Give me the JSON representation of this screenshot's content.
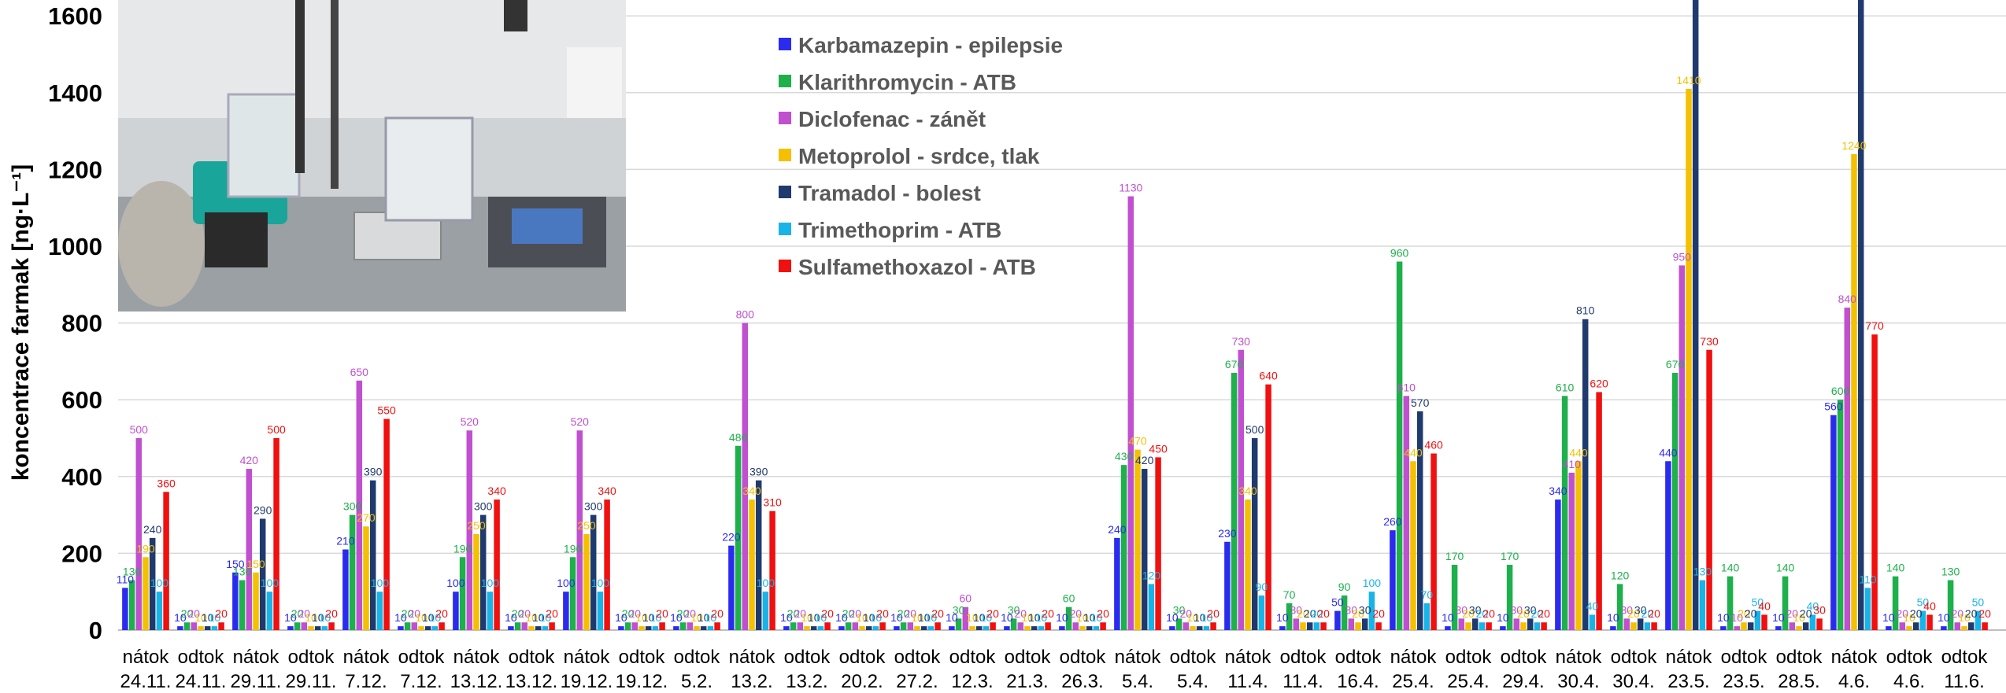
{
  "chart_data": {
    "type": "bar",
    "ylabel": "koncentrace farmak [ng·L⁻¹]",
    "ylim": [
      0,
      1640
    ],
    "yticks": [
      0,
      200,
      400,
      600,
      800,
      1000,
      1200,
      1400,
      1600
    ],
    "grid": true,
    "categories": [
      [
        "nátok",
        "24.11."
      ],
      [
        "odtok",
        "24.11."
      ],
      [
        "nátok",
        "29.11."
      ],
      [
        "odtok",
        "29.11."
      ],
      [
        "nátok",
        "7.12."
      ],
      [
        "odtok",
        "7.12."
      ],
      [
        "nátok",
        "13.12."
      ],
      [
        "odtok",
        "13.12."
      ],
      [
        "nátok",
        "19.12."
      ],
      [
        "odtok",
        "19.12."
      ],
      [
        "odtok",
        "5.2."
      ],
      [
        "nátok",
        "13.2."
      ],
      [
        "odtok",
        "13.2."
      ],
      [
        "odtok",
        "20.2."
      ],
      [
        "odtok",
        "27.2."
      ],
      [
        "odtok",
        "12.3."
      ],
      [
        "odtok",
        "21.3."
      ],
      [
        "odtok",
        "26.3."
      ],
      [
        "nátok",
        "5.4."
      ],
      [
        "odtok",
        "5.4."
      ],
      [
        "nátok",
        "11.4."
      ],
      [
        "odtok",
        "11.4."
      ],
      [
        "odtok",
        "16.4."
      ],
      [
        "nátok",
        "25.4."
      ],
      [
        "odtok",
        "25.4."
      ],
      [
        "odtok",
        "29.4."
      ],
      [
        "nátok",
        "30.4."
      ],
      [
        "odtok",
        "30.4."
      ],
      [
        "nátok",
        "23.5."
      ],
      [
        "odtok",
        "23.5."
      ],
      [
        "odtok",
        "28.5."
      ],
      [
        "nátok",
        "4.6."
      ],
      [
        "odtok",
        "4.6."
      ],
      [
        "odtok",
        "11.6."
      ]
    ],
    "series": [
      {
        "name": "Karbamazepin - epilepsie",
        "color": "#2b2bf0",
        "values": [
          110,
          10,
          150,
          10,
          210,
          10,
          100,
          10,
          100,
          10,
          10,
          220,
          10,
          10,
          10,
          10,
          10,
          10,
          240,
          10,
          230,
          10,
          50,
          260,
          10,
          10,
          340,
          10,
          440,
          10,
          10,
          560,
          10,
          10
        ]
      },
      {
        "name": "Klarithromycin - ATB",
        "color": "#1db04b",
        "values": [
          130,
          20,
          130,
          20,
          300,
          20,
          190,
          20,
          190,
          20,
          20,
          480,
          20,
          20,
          20,
          30,
          30,
          60,
          430,
          30,
          670,
          70,
          90,
          960,
          170,
          170,
          610,
          120,
          670,
          140,
          140,
          600,
          140,
          130
        ]
      },
      {
        "name": "Diclofenac - zánět",
        "color": "#c050d0",
        "values": [
          500,
          20,
          420,
          20,
          650,
          20,
          520,
          20,
          520,
          20,
          20,
          800,
          20,
          20,
          20,
          60,
          20,
          20,
          1130,
          20,
          730,
          30,
          30,
          610,
          30,
          30,
          410,
          30,
          950,
          10,
          20,
          840,
          20,
          20
        ]
      },
      {
        "name": "Metoprolol - srdce, tlak",
        "color": "#f5c000",
        "values": [
          190,
          10,
          150,
          10,
          270,
          10,
          250,
          10,
          250,
          10,
          10,
          340,
          10,
          10,
          10,
          10,
          10,
          10,
          470,
          10,
          340,
          20,
          20,
          440,
          20,
          20,
          440,
          20,
          1410,
          20,
          10,
          1240,
          10,
          10
        ]
      },
      {
        "name": "Tramadol - bolest",
        "color": "#1f3a6e",
        "values": [
          240,
          10,
          290,
          10,
          390,
          10,
          300,
          10,
          300,
          10,
          10,
          390,
          10,
          10,
          10,
          10,
          10,
          10,
          420,
          10,
          500,
          20,
          30,
          570,
          30,
          30,
          810,
          30,
          1700,
          20,
          20,
          1700,
          20,
          20
        ]
      },
      {
        "name": "Trimethoprim - ATB",
        "color": "#18b4e8",
        "values": [
          100,
          10,
          100,
          10,
          100,
          10,
          100,
          10,
          100,
          10,
          10,
          100,
          10,
          10,
          10,
          10,
          10,
          10,
          120,
          10,
          90,
          20,
          100,
          70,
          20,
          20,
          40,
          20,
          130,
          50,
          40,
          110,
          50,
          50
        ]
      },
      {
        "name": "Sulfamethoxazol - ATB",
        "color": "#f01010",
        "values": [
          360,
          20,
          500,
          20,
          550,
          20,
          340,
          20,
          340,
          20,
          20,
          310,
          20,
          20,
          20,
          20,
          20,
          20,
          450,
          20,
          640,
          20,
          20,
          460,
          20,
          20,
          620,
          20,
          730,
          40,
          30,
          770,
          40,
          20
        ]
      }
    ]
  }
}
